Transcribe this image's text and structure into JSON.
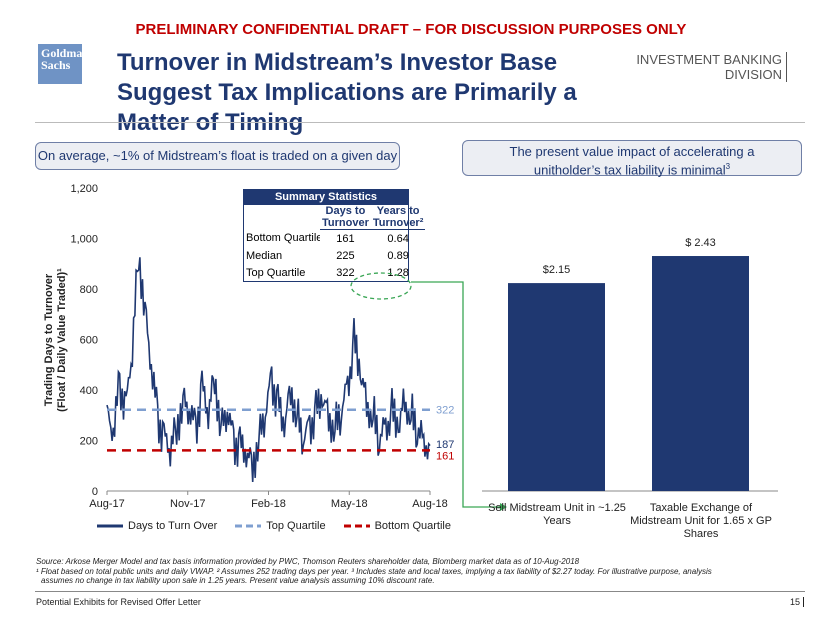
{
  "header": {
    "banner": "PRELIMINARY CONFIDENTIAL DRAFT – FOR DISCUSSION PURPOSES ONLY",
    "logo": "Goldman Sachs",
    "title": "Turnover in Midstream’s Investor Base Suggest Tax Implications are Primarily a Matter of Timing",
    "division_line1": "INVESTMENT BANKING",
    "division_line2": "DIVISION"
  },
  "callouts": {
    "left": "On average, ~1% of Midstream’s float is traded on a given day",
    "right_line1": "The present value impact of accelerating a",
    "right_line2": "unitholder’s tax liability is minimal",
    "right_sup": "3"
  },
  "summary": {
    "title": "Summary Statistics",
    "col1_a": "Days to",
    "col1_b": "Turnover",
    "col2_a": "Years to",
    "col2_b": "Turnover²",
    "rows": [
      {
        "label": "Bottom Quartile",
        "days": "161",
        "years": "0.64"
      },
      {
        "label": "Median",
        "days": "225",
        "years": "0.89"
      },
      {
        "label": "Top Quartile",
        "days": "322",
        "years": "1.28"
      }
    ]
  },
  "chart_data": [
    {
      "type": "line",
      "ylabel": "Trading Days to Turnover (Float / Daily Value Traded)¹",
      "ylim": [
        0,
        1200
      ],
      "yticks": [
        "0",
        "200",
        "400",
        "600",
        "800",
        "1,000",
        "1,200"
      ],
      "xticks": [
        "Aug-17",
        "Nov-17",
        "Feb-18",
        "May-18",
        "Aug-18"
      ],
      "series": [
        {
          "name": "Days to Turn Over",
          "color": "#1f3871",
          "values": [
            300,
            220,
            430,
            330,
            560,
            950,
            720,
            480,
            300,
            210,
            160,
            260,
            360,
            310,
            250,
            410,
            300,
            460,
            250,
            310,
            200,
            180,
            140,
            110,
            210,
            300,
            450,
            340,
            250,
            410,
            300,
            200,
            260,
            310,
            360,
            300,
            250,
            310,
            420,
            590,
            460,
            350,
            300,
            200,
            260,
            310,
            240,
            360,
            300,
            240,
            200,
            180
          ]
        },
        {
          "name": "Top Quartile",
          "color": "#7f9fd0",
          "value": 322,
          "label": "322"
        },
        {
          "name": "Bottom Quartile",
          "color": "#c00000",
          "value": 161,
          "label": "161"
        }
      ],
      "end_label": "187",
      "legend": "bottom"
    },
    {
      "type": "bar",
      "categories": [
        "Sell Midstream Unit in ~1.25 Years",
        "Taxable Exchange of Midstream Unit for 1.65 x GP Shares"
      ],
      "values": [
        2.15,
        2.43
      ],
      "labels": [
        "$2.15",
        "$ 2.43"
      ],
      "color": "#1f3871"
    }
  ],
  "footnotes": {
    "source": "Source:  Arkose Merger Model and tax basis information provided by PWC, Thomson Reuters shareholder data, Blomberg market data as of 10-Aug-2018",
    "note1": "¹ Float based on total public units and daily VWAP.  ² Assumes 252 trading days per year.  ³ Includes state and local taxes, implying a tax liability of $2.27 today. For illustrative purpose, analysis",
    "note2": "assumes no change in tax liability upon sale in 1.25 years. Present value analysis assuming 10% discount rate."
  },
  "footer": {
    "text": "Potential Exhibits for Revised Offer Letter",
    "page": "15"
  }
}
